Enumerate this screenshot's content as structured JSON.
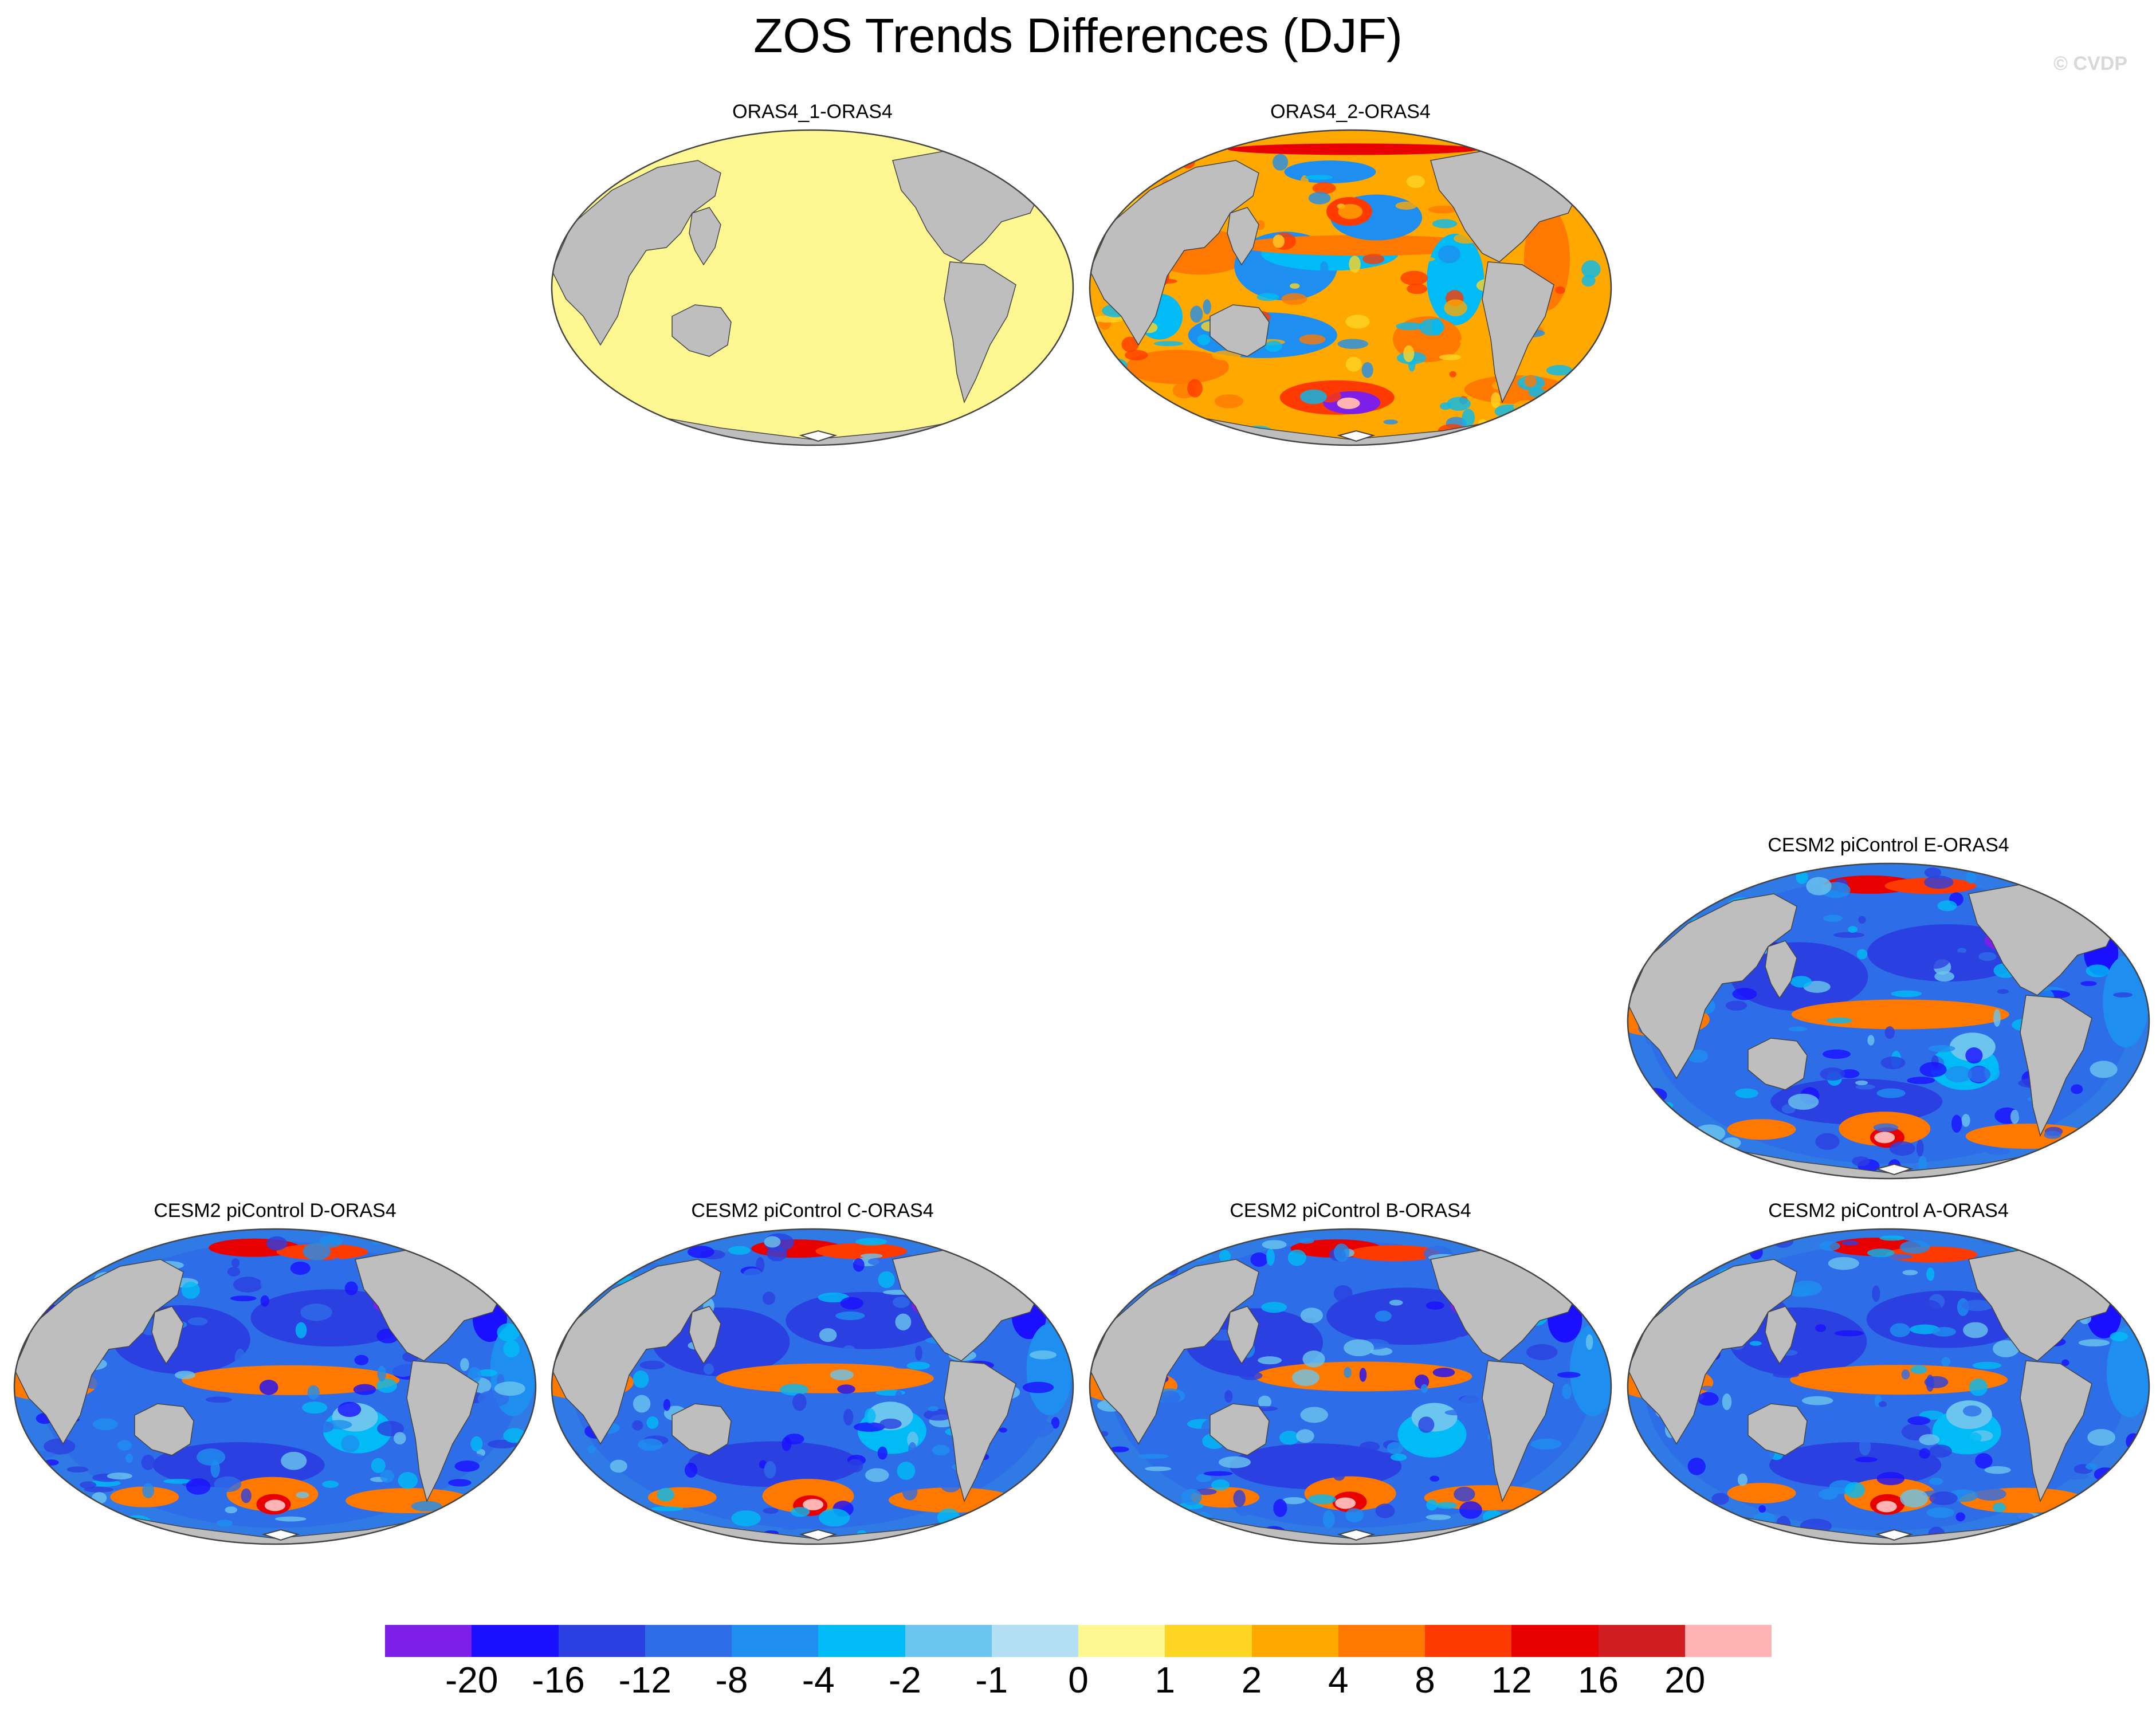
{
  "title": "ZOS Trends Differences (DJF)",
  "watermark": "© CVDP",
  "panels": [
    {
      "title": "ORAS4_1-ORAS4",
      "style": "flat"
    },
    {
      "title": "ORAS4_2-ORAS4",
      "style": "warm"
    },
    {
      "title": "CESM2 piControl E-ORAS4",
      "style": "cool"
    },
    {
      "title": "CESM2 piControl D-ORAS4",
      "style": "cool"
    },
    {
      "title": "CESM2 piControl C-ORAS4",
      "style": "cool"
    },
    {
      "title": "CESM2 piControl B-ORAS4",
      "style": "cool"
    },
    {
      "title": "CESM2 piControl A-ORAS4",
      "style": "cool"
    }
  ],
  "colors": {
    "land": "#bebebe",
    "zero_fill": "#fff791",
    "outline": "#444444",
    "cool_base": "#2f7ae5",
    "warm_base": "#ffa800"
  },
  "colorbar": {
    "colors": [
      "#7e1fe8",
      "#1a0fff",
      "#2a40e0",
      "#2e6de8",
      "#1e8ff0",
      "#00bbf5",
      "#6cc5ee",
      "#b3dff5",
      "#fff791",
      "#ffd524",
      "#ffa800",
      "#ff7800",
      "#ff3a00",
      "#e80000",
      "#cf1d20",
      "#ffb3b3"
    ],
    "labels": [
      "-20",
      "-16",
      "-12",
      "-8",
      "-4",
      "-2",
      "-1",
      "0",
      "1",
      "2",
      "4",
      "8",
      "12",
      "16",
      "20"
    ]
  }
}
